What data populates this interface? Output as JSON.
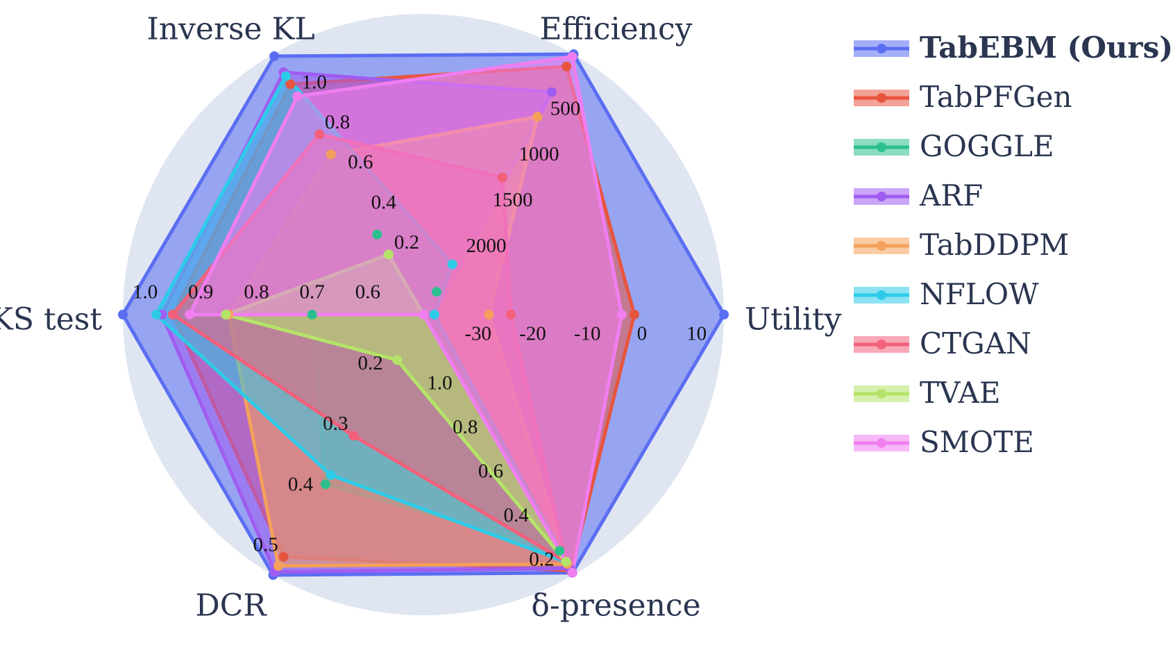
{
  "chart_data": {
    "type": "radar",
    "legend": "right",
    "axes": [
      {
        "name": "Utility",
        "range": [
          -40,
          15
        ],
        "ticks": [
          -30,
          -20,
          -10,
          0,
          10
        ]
      },
      {
        "name": "Efficiency",
        "range": [
          2850,
          0
        ],
        "ticks": [
          500,
          1000,
          1500,
          2000
        ]
      },
      {
        "name": "Inverse KL",
        "range": [
          -0.1,
          1.2
        ],
        "ticks": [
          {
            "value": 1.0,
            "label": "1.0"
          },
          0.8,
          0.6,
          0.4,
          0.2
        ]
      },
      {
        "name": "KS test",
        "range": [
          0.5,
          1.04
        ],
        "ticks": [
          {
            "value": 1.0,
            "label": "1.0"
          },
          0.9,
          0.8,
          0.7,
          0.6
        ]
      },
      {
        "name": "DCR",
        "range": [
          0.1,
          0.53
        ],
        "ticks": [
          0.5,
          0.4,
          0.3,
          0.2
        ]
      },
      {
        "name": "δ-presence",
        "range": [
          1.27,
          0.09
        ],
        "ticks": [
          0.2,
          0.4,
          0.6,
          0.8,
          {
            "value": 1.0,
            "label": "1.0"
          }
        ]
      }
    ],
    "series": [
      {
        "name": "TabEBM (Ours)",
        "color": "#5b6ef2",
        "values": [
          15,
          0,
          1.19,
          1.04,
          0.53,
          0.1
        ]
      },
      {
        "name": "TabPFGen",
        "color": "#e8553f",
        "values": [
          -1.4,
          135,
          1.05,
          0.95,
          0.5,
          0.11
        ]
      },
      {
        "name": "GOGGLE",
        "color": "#2bc08e",
        "values": [
          -40,
          2600,
          0.3,
          0.7,
          0.38,
          0.2
        ]
      },
      {
        "name": "ARF",
        "color": "#a05cf0",
        "values": [
          -38,
          415,
          1.11,
          0.97,
          0.525,
          0.12
        ]
      },
      {
        "name": "TabDDPM",
        "color": "#f5a05a",
        "values": [
          -28,
          685,
          0.7,
          0.85,
          0.515,
          0.14
        ]
      },
      {
        "name": "NFLOW",
        "color": "#2ecbe8",
        "values": [
          -38,
          2300,
          1.09,
          0.98,
          0.365,
          0.15
        ]
      },
      {
        "name": "CTGAN",
        "color": "#f2607a",
        "values": [
          -24,
          1350,
          0.8,
          0.95,
          0.3,
          0.15
        ]
      },
      {
        "name": "TVAE",
        "color": "#b5e36a",
        "values": [
          -40,
          2850,
          0.2,
          0.855,
          0.175,
          0.15
        ]
      },
      {
        "name": "SMOTE",
        "color": "#f07ef0",
        "values": [
          -3.7,
          28,
          0.99,
          0.92,
          0.1,
          0.1
        ]
      }
    ]
  }
}
